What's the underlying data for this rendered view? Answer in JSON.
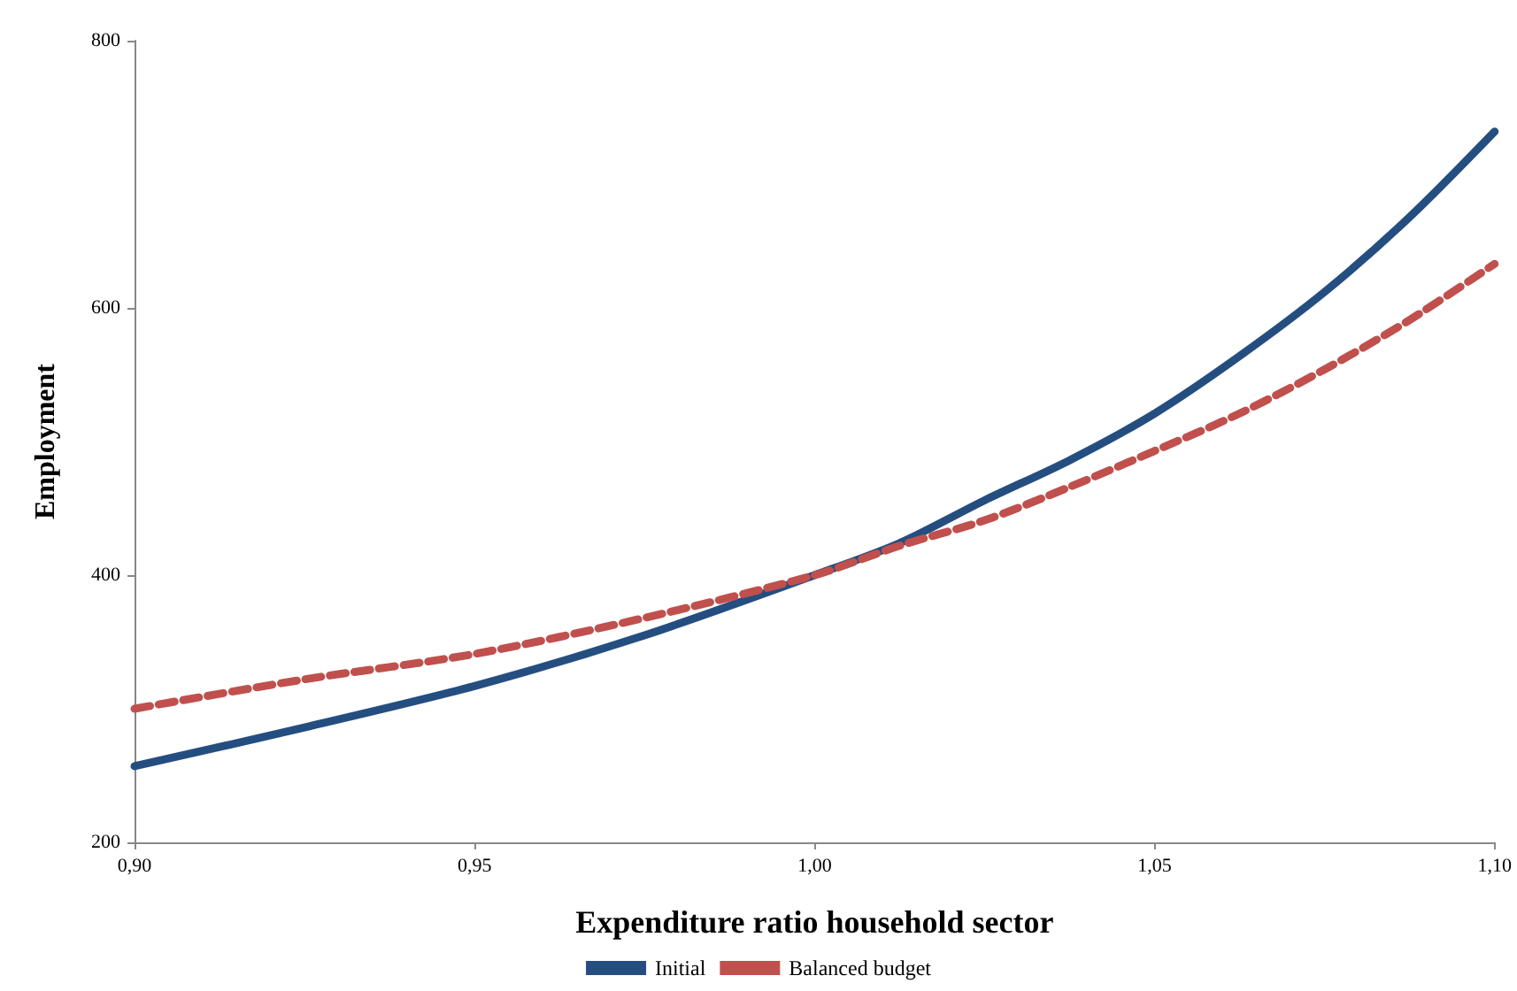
{
  "chart_data": {
    "type": "line",
    "xlabel": "Expenditure ratio household sector",
    "ylabel": "Employment",
    "x": [
      0.9,
      0.925,
      0.95,
      0.975,
      1.0,
      1.0125,
      1.025,
      1.0375,
      1.05,
      1.0625,
      1.075,
      1.0875,
      1.1
    ],
    "series": [
      {
        "name": "Initial",
        "color": "#254e80",
        "line_style": "solid",
        "values": [
          257,
          286,
          317,
          355,
          400,
          424,
          456,
          486,
          521,
          564,
          612,
          668,
          732
        ]
      },
      {
        "name": "Balanced budget",
        "color": "#c0504d",
        "line_style": "dashed",
        "values": [
          300,
          322,
          341,
          368,
          400,
          422,
          441,
          466,
          493,
          521,
          554,
          591,
          633
        ]
      }
    ],
    "xlim": [
      0.9,
      1.1
    ],
    "xticks": [
      {
        "value": 0.9,
        "label": "0,90"
      },
      {
        "value": 0.95,
        "label": "0,95"
      },
      {
        "value": 1.0,
        "label": "1,00"
      },
      {
        "value": 1.05,
        "label": "1,05"
      },
      {
        "value": 1.1,
        "label": "1,10"
      }
    ],
    "ylim": [
      200,
      800
    ],
    "yticks": [
      200,
      400,
      600,
      800
    ],
    "grid": false,
    "legend": "bottom",
    "marker": "none"
  }
}
